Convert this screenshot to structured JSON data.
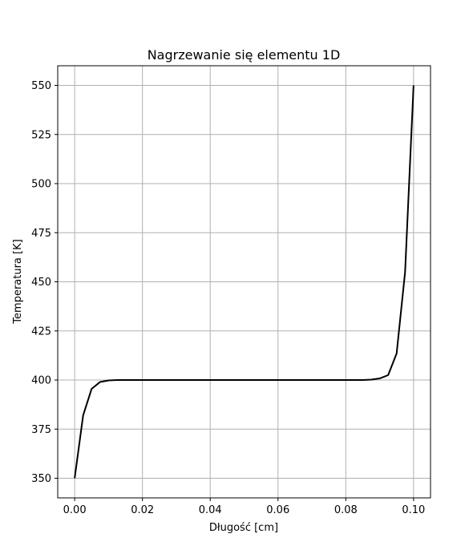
{
  "chart_data": {
    "type": "line",
    "title": "Nagrzewanie się elementu 1D",
    "xlabel": "Długość [cm]",
    "ylabel": "Temperatura [K]",
    "xlim": [
      -0.005,
      0.105
    ],
    "ylim": [
      340,
      560
    ],
    "xticks": [
      0.0,
      0.02,
      0.04,
      0.06,
      0.08,
      0.1
    ],
    "xtick_labels": [
      "0.00",
      "0.02",
      "0.04",
      "0.06",
      "0.08",
      "0.10"
    ],
    "yticks": [
      350,
      375,
      400,
      425,
      450,
      475,
      500,
      525,
      550
    ],
    "ytick_labels": [
      "350",
      "375",
      "400",
      "425",
      "450",
      "475",
      "500",
      "525",
      "550"
    ],
    "grid": true,
    "series": [
      {
        "color": "#000000",
        "x": [
          0.0,
          0.0025,
          0.005,
          0.0075,
          0.01,
          0.0125,
          0.015,
          0.02,
          0.03,
          0.04,
          0.05,
          0.06,
          0.07,
          0.08,
          0.085,
          0.0875,
          0.09,
          0.0925,
          0.095,
          0.0975,
          0.1
        ],
        "y": [
          350,
          382,
          395.5,
          399,
          399.8,
          400,
          400,
          400,
          400,
          400,
          400,
          400,
          400,
          400,
          400,
          400.2,
          400.8,
          402.5,
          413.5,
          455,
          550
        ]
      }
    ]
  }
}
